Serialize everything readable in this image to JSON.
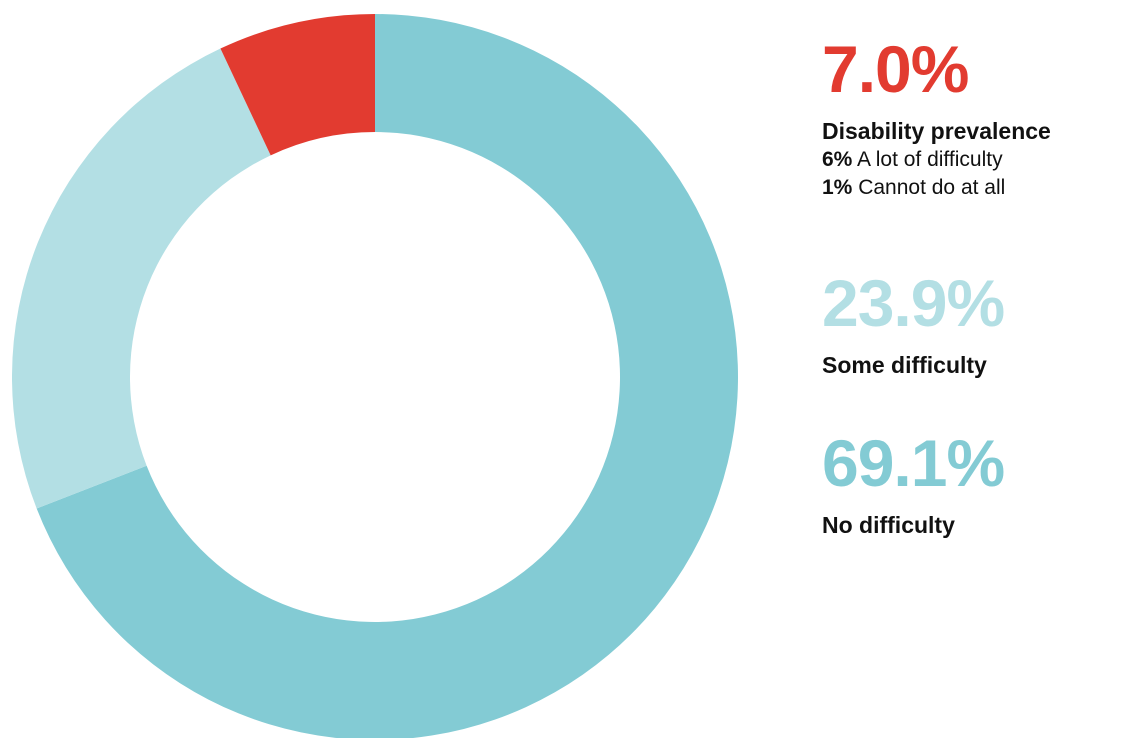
{
  "chart_data": {
    "type": "pie",
    "style": "donut",
    "segments": [
      {
        "label": "Disability prevalence",
        "value": 7.0,
        "display": "7.0%",
        "color": "#e23b30"
      },
      {
        "label": "Some difficulty",
        "value": 23.9,
        "display": "23.9%",
        "color": "#b3dfe4"
      },
      {
        "label": "No difficulty",
        "value": 69.1,
        "display": "69.1%",
        "color": "#83cbd4"
      }
    ],
    "breakdown": [
      {
        "value": "6%",
        "text": "A lot of difficulty"
      },
      {
        "value": "1%",
        "text": "Cannot do at all"
      }
    ],
    "legend_placement": "right"
  }
}
